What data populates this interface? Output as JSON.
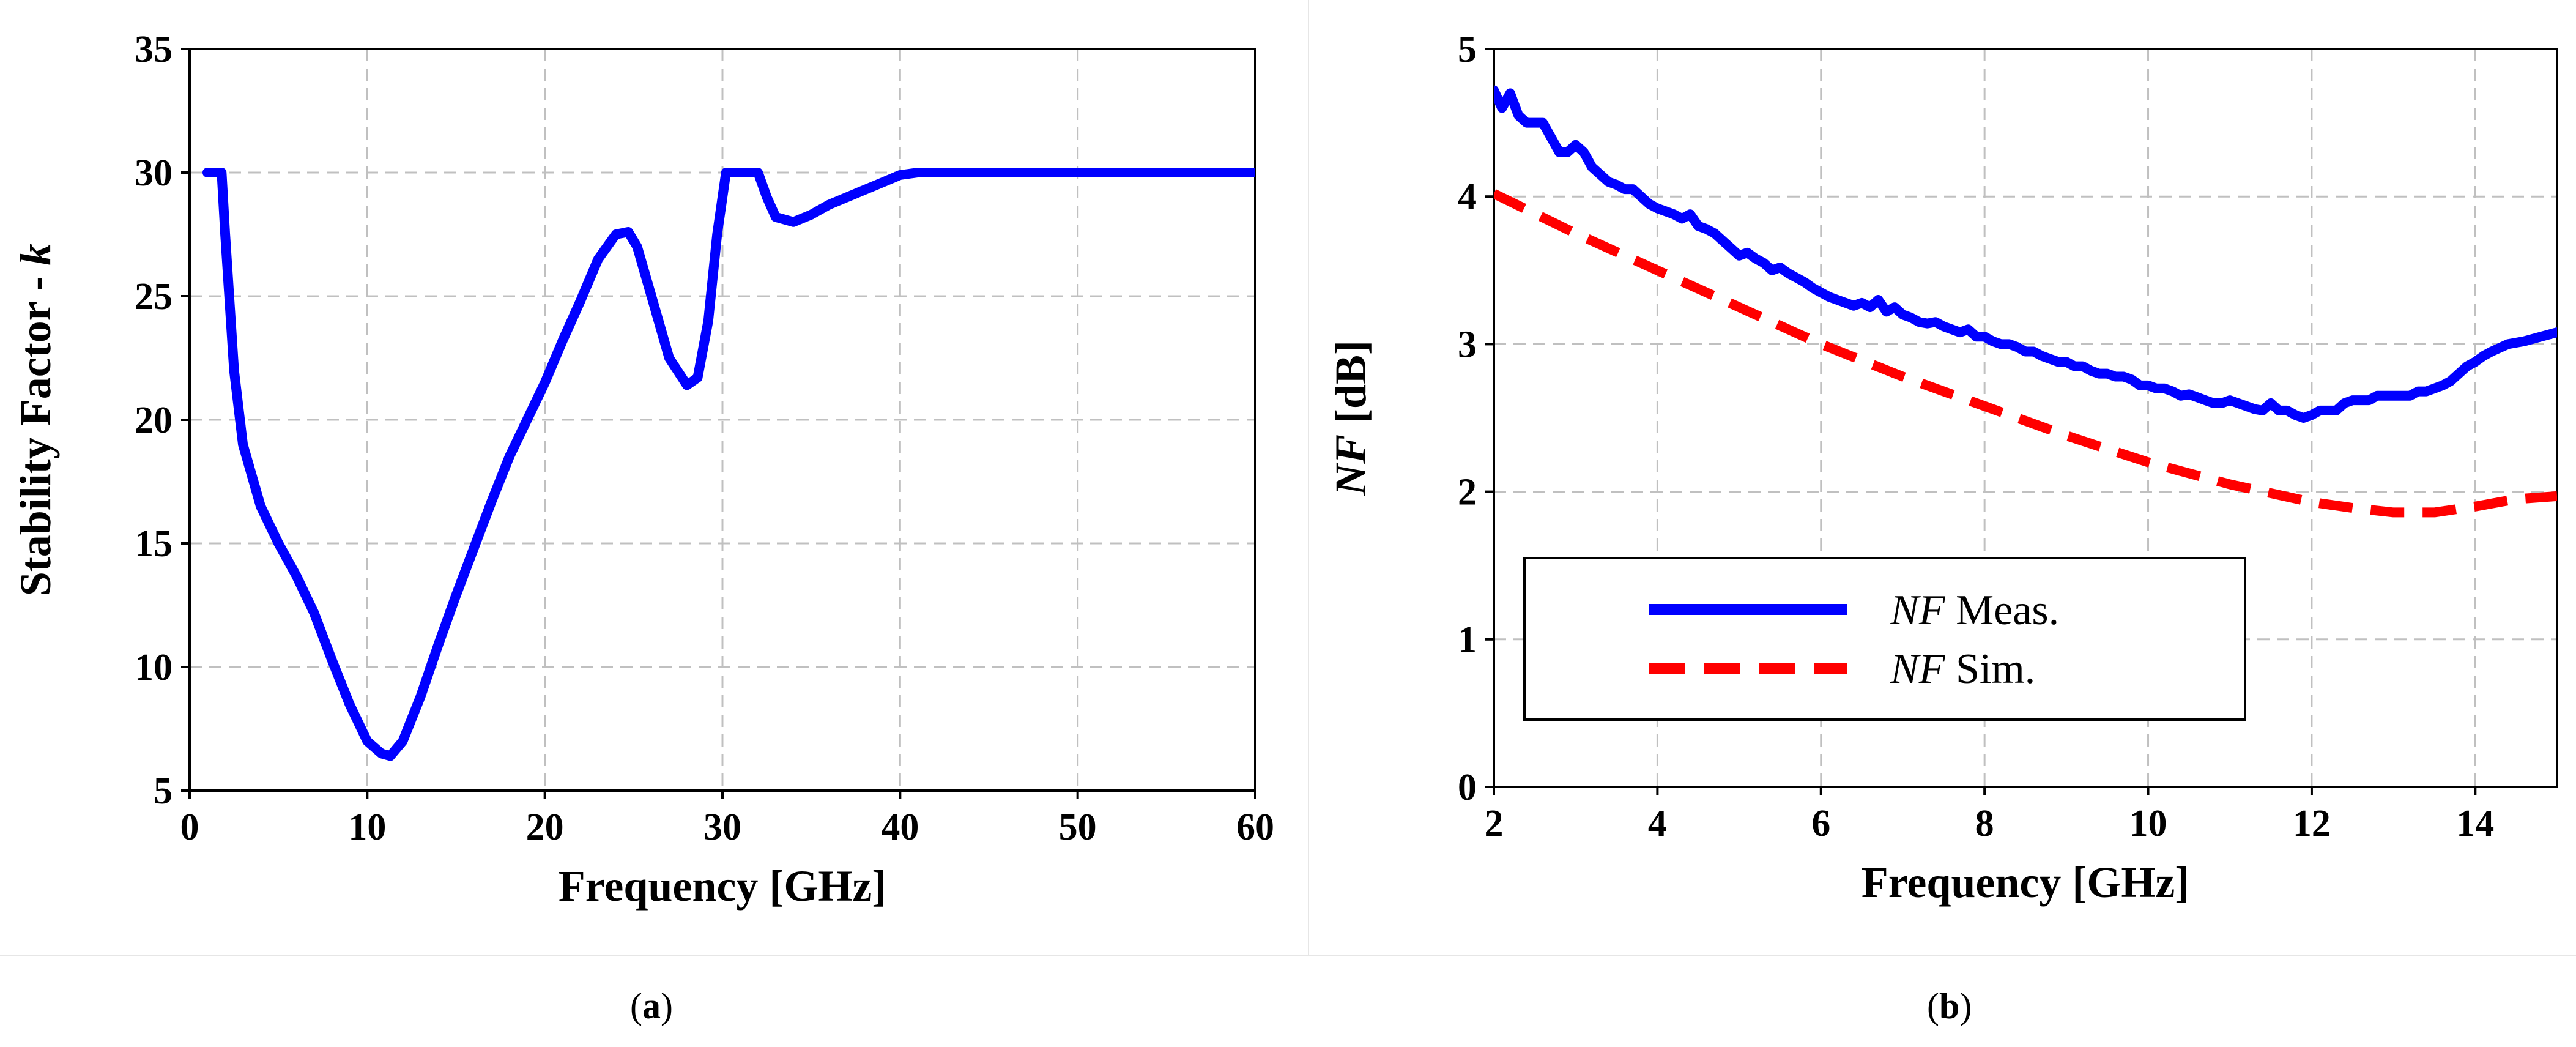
{
  "captions": {
    "a": {
      "open": "(",
      "letter": "a",
      "close": ")"
    },
    "b": {
      "open": "(",
      "letter": "b",
      "close": ")"
    }
  },
  "colors": {
    "series_a": "#0000ff",
    "meas": "#0000ff",
    "sim": "#ff0000",
    "grid": "#c0c0c0"
  },
  "chart_data": [
    {
      "id": "a",
      "type": "line",
      "title": "",
      "xlabel": "Frequency [GHz]",
      "ylabel_main": "Stability Factor - ",
      "ylabel_italic": "k",
      "xlim": [
        0,
        60
      ],
      "ylim": [
        5,
        35
      ],
      "xticks": [
        0,
        10,
        20,
        30,
        40,
        50,
        60
      ],
      "yticks": [
        5,
        10,
        15,
        20,
        25,
        30,
        35
      ],
      "grid": true,
      "series": [
        {
          "name": "k",
          "x": [
            1,
            1.8,
            2,
            2.5,
            3,
            4,
            5,
            6,
            7,
            8,
            9,
            10,
            10.8,
            11.3,
            12,
            13,
            14,
            15,
            16,
            17,
            18,
            19,
            20,
            21,
            22,
            23,
            24,
            24.7,
            25.2,
            26,
            27,
            28,
            28.6,
            29.2,
            29.7,
            30.2,
            31,
            32,
            32.5,
            33,
            34,
            35,
            36,
            37,
            38,
            39,
            40,
            41,
            42,
            45,
            50,
            55,
            60
          ],
          "y": [
            30,
            30,
            27.5,
            22,
            19,
            16.5,
            15,
            13.7,
            12.2,
            10.3,
            8.5,
            7,
            6.5,
            6.4,
            7,
            8.8,
            10.9,
            12.9,
            14.8,
            16.7,
            18.5,
            20,
            21.5,
            23.2,
            24.8,
            26.5,
            27.5,
            27.6,
            27,
            25,
            22.5,
            21.4,
            21.7,
            24,
            27.5,
            30,
            30,
            30,
            29,
            28.2,
            28,
            28.3,
            28.7,
            29,
            29.3,
            29.6,
            29.9,
            30,
            30,
            30,
            30,
            30,
            30
          ]
        }
      ]
    },
    {
      "id": "b",
      "type": "line",
      "title": "",
      "xlabel": "Frequency [GHz]",
      "ylabel_italic": "NF",
      "ylabel_main": " [dB]",
      "xlim": [
        2,
        15
      ],
      "ylim": [
        0,
        5
      ],
      "xticks": [
        2,
        4,
        6,
        8,
        10,
        12,
        14
      ],
      "yticks": [
        0,
        1,
        2,
        3,
        4,
        5
      ],
      "grid": true,
      "legend_position": "lower-left",
      "series": [
        {
          "name_italic": "NF",
          "name": " Meas.",
          "style": "solid",
          "x": [
            2,
            2.1,
            2.2,
            2.3,
            2.4,
            2.5,
            2.6,
            2.8,
            2.9,
            3.0,
            3.1,
            3.2,
            3.3,
            3.4,
            3.5,
            3.6,
            3.7,
            3.8,
            3.9,
            4.0,
            4.1,
            4.2,
            4.3,
            4.4,
            4.5,
            4.6,
            4.7,
            4.8,
            4.9,
            5.0,
            5.1,
            5.2,
            5.3,
            5.4,
            5.5,
            5.6,
            5.7,
            5.8,
            5.9,
            6.0,
            6.1,
            6.2,
            6.3,
            6.4,
            6.5,
            6.6,
            6.7,
            6.8,
            6.9,
            7.0,
            7.1,
            7.2,
            7.3,
            7.4,
            7.5,
            7.6,
            7.7,
            7.8,
            7.9,
            8.0,
            8.1,
            8.2,
            8.3,
            8.4,
            8.5,
            8.6,
            8.7,
            8.8,
            8.9,
            9.0,
            9.1,
            9.2,
            9.3,
            9.4,
            9.5,
            9.6,
            9.7,
            9.8,
            9.9,
            10.0,
            10.1,
            10.2,
            10.3,
            10.4,
            10.5,
            10.6,
            10.7,
            10.8,
            10.9,
            11.0,
            11.1,
            11.2,
            11.3,
            11.4,
            11.5,
            11.6,
            11.7,
            11.8,
            11.9,
            12.0,
            12.1,
            12.2,
            12.3,
            12.4,
            12.5,
            12.6,
            12.7,
            12.8,
            12.9,
            13.0,
            13.1,
            13.2,
            13.3,
            13.4,
            13.5,
            13.6,
            13.7,
            13.8,
            13.9,
            14.0,
            14.1,
            14.2,
            14.4,
            14.6,
            14.8,
            15.0
          ],
          "y": [
            4.72,
            4.6,
            4.7,
            4.55,
            4.5,
            4.5,
            4.5,
            4.3,
            4.3,
            4.35,
            4.3,
            4.2,
            4.15,
            4.1,
            4.08,
            4.05,
            4.05,
            4.0,
            3.95,
            3.92,
            3.9,
            3.88,
            3.85,
            3.88,
            3.8,
            3.78,
            3.75,
            3.7,
            3.65,
            3.6,
            3.62,
            3.58,
            3.55,
            3.5,
            3.52,
            3.48,
            3.45,
            3.42,
            3.38,
            3.35,
            3.32,
            3.3,
            3.28,
            3.26,
            3.28,
            3.25,
            3.3,
            3.22,
            3.25,
            3.2,
            3.18,
            3.15,
            3.14,
            3.15,
            3.12,
            3.1,
            3.08,
            3.1,
            3.05,
            3.05,
            3.02,
            3.0,
            3.0,
            2.98,
            2.95,
            2.95,
            2.92,
            2.9,
            2.88,
            2.88,
            2.85,
            2.85,
            2.82,
            2.8,
            2.8,
            2.78,
            2.78,
            2.76,
            2.72,
            2.72,
            2.7,
            2.7,
            2.68,
            2.65,
            2.66,
            2.64,
            2.62,
            2.6,
            2.6,
            2.62,
            2.6,
            2.58,
            2.56,
            2.55,
            2.6,
            2.55,
            2.55,
            2.52,
            2.5,
            2.52,
            2.55,
            2.55,
            2.55,
            2.6,
            2.62,
            2.62,
            2.62,
            2.65,
            2.65,
            2.65,
            2.65,
            2.65,
            2.68,
            2.68,
            2.7,
            2.72,
            2.75,
            2.8,
            2.85,
            2.88,
            2.92,
            2.95,
            3.0,
            3.02,
            3.05,
            3.08
          ]
        },
        {
          "name_italic": "NF",
          "name": " Sim.",
          "style": "dashed",
          "x": [
            2,
            3,
            4,
            5,
            6,
            7,
            8,
            9,
            10,
            11,
            12,
            12.5,
            13,
            13.5,
            14,
            14.5,
            15
          ],
          "y": [
            4.02,
            3.75,
            3.5,
            3.25,
            3.0,
            2.78,
            2.58,
            2.38,
            2.2,
            2.05,
            1.93,
            1.89,
            1.86,
            1.86,
            1.9,
            1.95,
            1.97
          ]
        }
      ]
    }
  ]
}
